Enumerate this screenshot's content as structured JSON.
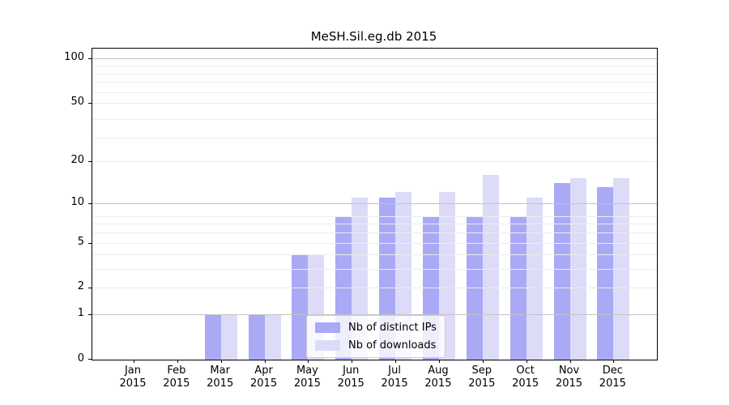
{
  "title": "MeSH.Sil.eg.db 2015",
  "chart_data": {
    "type": "bar",
    "title": "MeSH.Sil.eg.db 2015",
    "xlabel": "",
    "ylabel": "",
    "scale": "log1p",
    "categories": [
      "Jan",
      "Feb",
      "Mar",
      "Apr",
      "May",
      "Jun",
      "Jul",
      "Aug",
      "Sep",
      "Oct",
      "Nov",
      "Dec"
    ],
    "year": "2015",
    "series": [
      {
        "name": "Nb of distinct IPs",
        "color": "#a9a9f6",
        "values": [
          0,
          0,
          1,
          1,
          4,
          8,
          11,
          8,
          8,
          8,
          14,
          13
        ]
      },
      {
        "name": "Nb of downloads",
        "color": "#dcdcf8",
        "values": [
          0,
          0,
          1,
          1,
          4,
          11,
          12,
          12,
          16,
          11,
          15,
          15
        ]
      }
    ],
    "yticks": [
      0,
      1,
      2,
      5,
      10,
      20,
      50,
      100
    ],
    "ylim": [
      0,
      116
    ],
    "grid": {
      "major": [
        1,
        10,
        100
      ],
      "minor": [
        2,
        3,
        4,
        5,
        6,
        7,
        8,
        20,
        29,
        39,
        50,
        59,
        69,
        79,
        89
      ]
    },
    "legend_position": "lower-center",
    "colors": {
      "grid_major": "#c3c3c3",
      "grid_minor": "#ececec",
      "spine": "#000000"
    }
  }
}
